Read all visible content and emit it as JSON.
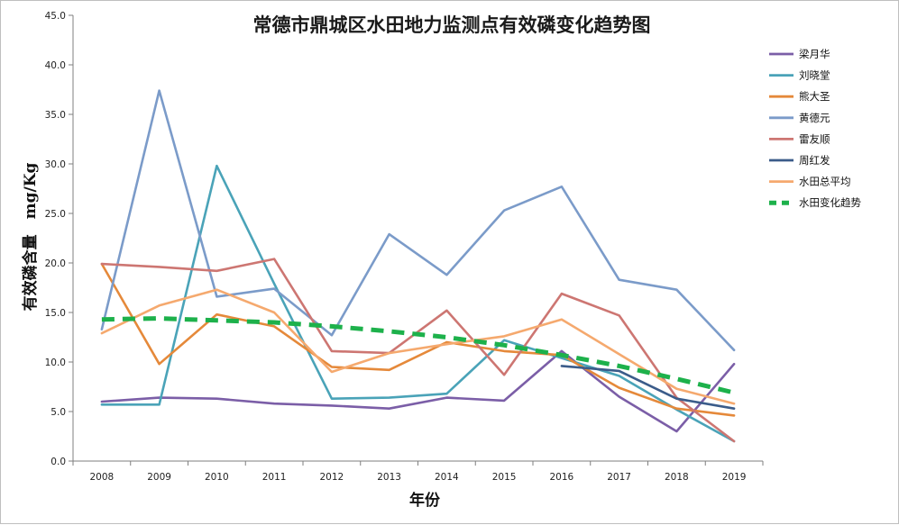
{
  "chart_data": {
    "type": "line",
    "title": "常德市鼎城区水田地力监测点有效磷变化趋势图",
    "xlabel": "年份",
    "ylabel": "有效磷含量　mg/Kg",
    "ylim": [
      0,
      45
    ],
    "y_ticks": [
      "0.0",
      "5.0",
      "10.0",
      "15.0",
      "20.0",
      "25.0",
      "30.0",
      "35.0",
      "40.0",
      "45.0"
    ],
    "categories": [
      "2008",
      "2009",
      "2010",
      "2011",
      "2012",
      "2013",
      "2014",
      "2015",
      "2016",
      "2017",
      "2018",
      "2019"
    ],
    "grid": false,
    "legend_position": "right",
    "series": [
      {
        "name": "梁月华",
        "color": "#7b5ea7",
        "dashed": false,
        "values": [
          6.0,
          6.4,
          6.3,
          5.8,
          5.6,
          5.3,
          6.4,
          6.1,
          11.1,
          6.5,
          3.0,
          9.8
        ]
      },
      {
        "name": "刘晓堂",
        "color": "#4aa3b8",
        "dashed": false,
        "values": [
          5.7,
          5.7,
          29.8,
          17.9,
          6.3,
          6.4,
          6.8,
          12.2,
          10.4,
          8.6,
          5.2,
          2.0
        ]
      },
      {
        "name": "熊大圣",
        "color": "#e5893a",
        "dashed": false,
        "values": [
          19.9,
          9.8,
          14.8,
          13.6,
          9.5,
          9.2,
          12.0,
          11.1,
          10.7,
          7.4,
          5.3,
          4.6
        ]
      },
      {
        "name": "黄德元",
        "color": "#7b9bc9",
        "dashed": false,
        "values": [
          13.3,
          37.4,
          16.6,
          17.4,
          12.7,
          22.9,
          18.8,
          25.3,
          27.7,
          18.3,
          17.3,
          11.2
        ]
      },
      {
        "name": "雷友顺",
        "color": "#cd7672",
        "dashed": false,
        "values": [
          19.9,
          19.6,
          19.2,
          20.4,
          11.1,
          10.9,
          15.2,
          8.7,
          16.9,
          14.7,
          6.4,
          2.0
        ]
      },
      {
        "name": "周红发",
        "color": "#3b5c8a",
        "dashed": false,
        "values": [
          null,
          null,
          null,
          null,
          null,
          null,
          null,
          null,
          9.6,
          9.1,
          6.3,
          5.3
        ]
      },
      {
        "name": "水田总平均",
        "color": "#f5a96e",
        "dashed": false,
        "values": [
          12.9,
          15.7,
          17.3,
          15.0,
          9.0,
          10.9,
          11.8,
          12.6,
          14.3,
          10.8,
          7.3,
          5.8
        ]
      },
      {
        "name": "水田变化趋势",
        "color": "#1db14b",
        "dashed": true,
        "values": [
          14.3,
          14.4,
          14.2,
          14.0,
          13.6,
          13.1,
          12.5,
          11.7,
          10.7,
          9.6,
          8.3,
          6.9
        ]
      }
    ]
  }
}
